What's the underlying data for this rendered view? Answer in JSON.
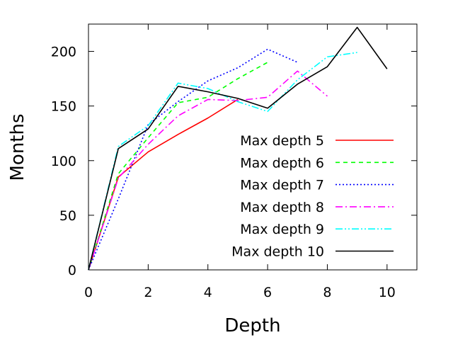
{
  "chart_data": {
    "type": "line",
    "title": "",
    "xlabel": "Depth",
    "ylabel": "Months",
    "xlim": [
      0,
      11
    ],
    "ylim": [
      0,
      225
    ],
    "xticks": [
      0,
      2,
      4,
      6,
      8,
      10
    ],
    "yticks": [
      0,
      50,
      100,
      150,
      200
    ],
    "grid": false,
    "legend_position": "bottom-right",
    "series": [
      {
        "name": "Max depth 5",
        "color": "#ff0000",
        "dash": "solid",
        "x": [
          0,
          1,
          2,
          3,
          4,
          5
        ],
        "values": [
          0,
          85,
          108,
          124,
          139,
          156
        ]
      },
      {
        "name": "Max depth 6",
        "color": "#00ff00",
        "dash": "dash",
        "x": [
          0,
          1,
          2,
          3,
          4,
          5,
          6
        ],
        "values": [
          0,
          88,
          121,
          153,
          158,
          175,
          190
        ]
      },
      {
        "name": "Max depth 7",
        "color": "#0000ff",
        "dash": "dot",
        "x": [
          0,
          1,
          2,
          3,
          4,
          5,
          6,
          7
        ],
        "values": [
          0,
          65,
          133,
          154,
          173,
          185,
          202,
          190
        ]
      },
      {
        "name": "Max depth 8",
        "color": "#ff00ff",
        "dash": "dashdot",
        "x": [
          0,
          1,
          2,
          3,
          4,
          5,
          6,
          7,
          8
        ],
        "values": [
          0,
          84,
          115,
          141,
          156,
          155,
          158,
          182,
          159
        ]
      },
      {
        "name": "Max depth 9",
        "color": "#00ffff",
        "dash": "dashdotdot",
        "x": [
          0,
          1,
          2,
          3,
          4,
          5,
          6,
          7,
          8,
          9
        ],
        "values": [
          0,
          113,
          132,
          171,
          166,
          154,
          145,
          174,
          195,
          199
        ]
      },
      {
        "name": "Max depth 10",
        "color": "#000000",
        "dash": "solid",
        "x": [
          0,
          1,
          2,
          3,
          4,
          5,
          6,
          7,
          8,
          9,
          10
        ],
        "values": [
          0,
          111,
          129,
          168,
          163,
          157,
          148,
          170,
          186,
          222,
          184
        ]
      }
    ]
  }
}
